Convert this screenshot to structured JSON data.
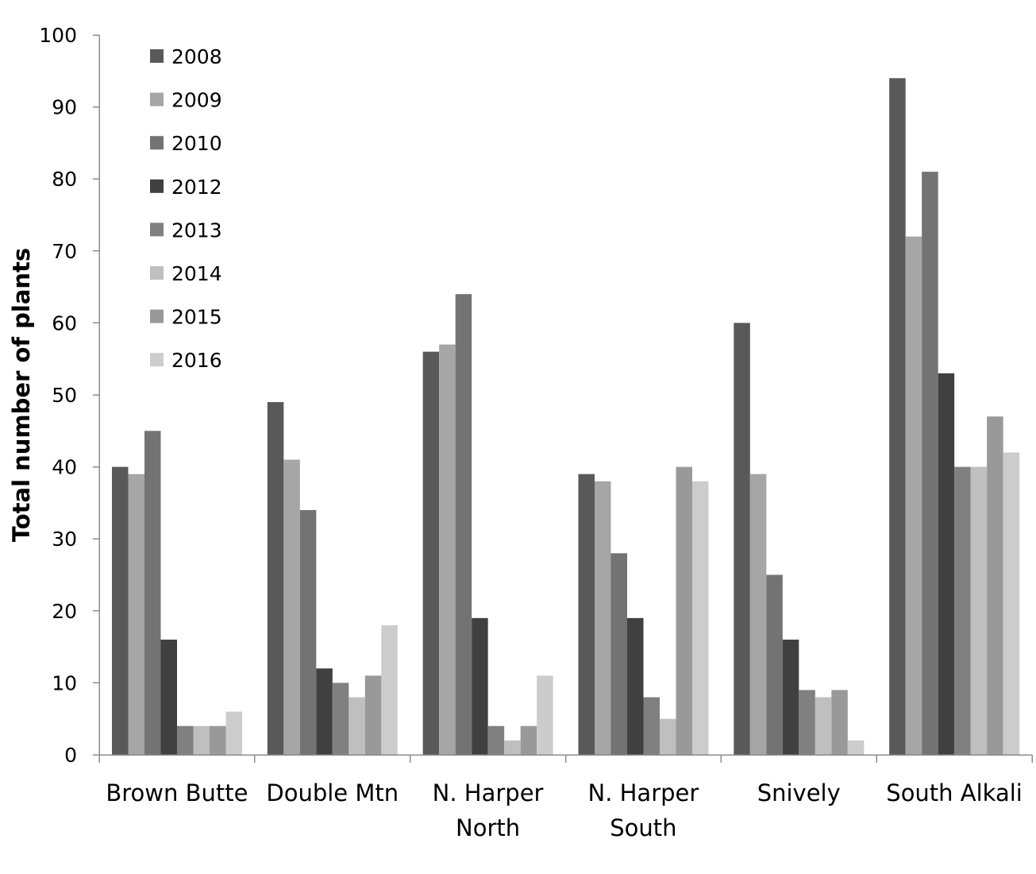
{
  "chart_data": {
    "type": "bar",
    "title": "",
    "xlabel": "",
    "ylabel": "Total number of plants",
    "ylim": [
      0,
      100
    ],
    "yticks": [
      0,
      10,
      20,
      30,
      40,
      50,
      60,
      70,
      80,
      90,
      100
    ],
    "grid": false,
    "legend_position": "top-left",
    "categories": [
      [
        "Brown Butte"
      ],
      [
        "Double Mtn"
      ],
      [
        "N. Harper",
        "North"
      ],
      [
        "N. Harper",
        "South"
      ],
      [
        "Snively"
      ],
      [
        "South Alkali"
      ]
    ],
    "series": [
      {
        "name": "2008",
        "color": "#595959",
        "values": [
          40,
          49,
          56,
          39,
          60,
          94
        ]
      },
      {
        "name": "2009",
        "color": "#a6a6a6",
        "values": [
          39,
          41,
          57,
          38,
          39,
          72
        ]
      },
      {
        "name": "2010",
        "color": "#737373",
        "values": [
          45,
          34,
          64,
          28,
          25,
          81
        ]
      },
      {
        "name": "2012",
        "color": "#404040",
        "values": [
          16,
          12,
          19,
          19,
          16,
          53
        ]
      },
      {
        "name": "2013",
        "color": "#808080",
        "values": [
          4,
          10,
          4,
          8,
          9,
          40
        ]
      },
      {
        "name": "2014",
        "color": "#bfbfbf",
        "values": [
          4,
          8,
          2,
          5,
          8,
          40
        ]
      },
      {
        "name": "2015",
        "color": "#999999",
        "values": [
          4,
          11,
          4,
          40,
          9,
          47
        ]
      },
      {
        "name": "2016",
        "color": "#cccccc",
        "values": [
          6,
          18,
          11,
          38,
          2,
          42
        ]
      }
    ]
  }
}
